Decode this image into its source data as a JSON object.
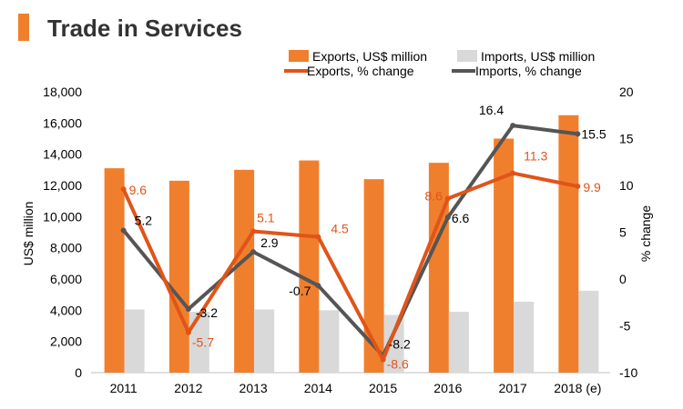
{
  "page": {
    "title": "Trade in Services",
    "colors": {
      "title_bar": "#f07f2d",
      "exports_bar": "#f07f2d",
      "imports_bar": "#d9d9d9",
      "exports_line": "#e0541a",
      "imports_line": "#555555"
    }
  },
  "chart_data": {
    "type": "bar",
    "categories": [
      "2011",
      "2012",
      "2013",
      "2014",
      "2015",
      "2016",
      "2017",
      "2018 (e)"
    ],
    "ylabel": "US$ million",
    "y2label": "% change",
    "ylim": [
      0,
      18000
    ],
    "y2lim": [
      -10,
      20
    ],
    "y_ticks": [
      "0",
      "2,000",
      "4,000",
      "6,000",
      "8,000",
      "10,000",
      "12,000",
      "14,000",
      "16,000",
      "18,000"
    ],
    "y2_ticks": [
      "-10",
      "-5",
      "0",
      "5",
      "10",
      "15",
      "20"
    ],
    "legend_position": "top-right",
    "series": [
      {
        "name": "Exports, US$ million",
        "kind": "bar",
        "axis": "left",
        "color": "#f07f2d",
        "values": [
          13100,
          12300,
          13000,
          13600,
          12400,
          13450,
          15000,
          16500
        ]
      },
      {
        "name": "Imports, US$ million",
        "kind": "bar",
        "axis": "left",
        "color": "#d9d9d9",
        "values": [
          4050,
          3900,
          4050,
          4000,
          3700,
          3900,
          4550,
          5250
        ]
      },
      {
        "name": "Exports, % change",
        "kind": "line",
        "axis": "right",
        "color": "#e0541a",
        "values": [
          9.6,
          -5.7,
          5.1,
          4.5,
          -8.6,
          8.6,
          11.3,
          9.9
        ],
        "labels": [
          "9.6",
          "-5.7",
          "5.1",
          "4.5",
          "-8.6",
          "8.6",
          "11.3",
          "9.9"
        ]
      },
      {
        "name": "Imports, % change",
        "kind": "line",
        "axis": "right",
        "color": "#555555",
        "values": [
          5.2,
          -3.2,
          2.9,
          -0.7,
          -8.2,
          6.6,
          16.4,
          15.5
        ],
        "labels": [
          "5.2",
          "-3.2",
          "2.9",
          "-0.7",
          "-8.2",
          "6.6",
          "16.4",
          "15.5"
        ]
      }
    ]
  }
}
